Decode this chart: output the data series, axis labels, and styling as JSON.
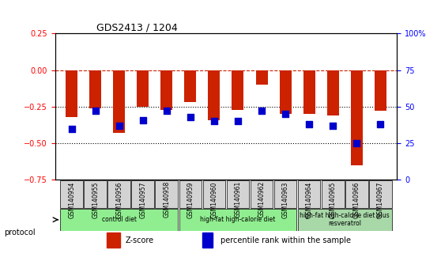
{
  "title": "GDS2413 / 1204",
  "samples": [
    "GSM140954",
    "GSM140955",
    "GSM140956",
    "GSM140957",
    "GSM140958",
    "GSM140959",
    "GSM140960",
    "GSM140961",
    "GSM140962",
    "GSM140963",
    "GSM140964",
    "GSM140965",
    "GSM140966",
    "GSM140967"
  ],
  "zscore": [
    -0.32,
    -0.26,
    -0.43,
    -0.25,
    -0.27,
    -0.22,
    -0.34,
    -0.27,
    -0.1,
    -0.3,
    -0.3,
    -0.31,
    -0.65,
    -0.28
  ],
  "percentile": [
    35,
    47,
    37,
    41,
    47,
    43,
    40,
    40,
    47,
    45,
    38,
    37,
    25,
    38
  ],
  "ylim_left": [
    -0.75,
    0.25
  ],
  "ylim_right": [
    0,
    100
  ],
  "yticks_left": [
    0.25,
    0,
    -0.25,
    -0.5,
    -0.75
  ],
  "yticks_right": [
    100,
    75,
    50,
    25,
    0
  ],
  "hline_y": 0,
  "dotted_lines": [
    -0.25,
    -0.5
  ],
  "groups": [
    {
      "label": "control diet",
      "start": 0,
      "end": 5,
      "color": "#90ee90"
    },
    {
      "label": "high-fat high-calorie diet",
      "start": 5,
      "end": 10,
      "color": "#90ee90"
    },
    {
      "label": "high-fat high-calorie diet plus\nresveratrol",
      "start": 10,
      "end": 14,
      "color": "#a8d8a8"
    }
  ],
  "group_dividers": [
    4.5,
    9.5
  ],
  "bar_color": "#cc2200",
  "dot_color": "#0000cc",
  "bar_width": 0.5,
  "dot_size": 40,
  "background_color": "#ffffff"
}
